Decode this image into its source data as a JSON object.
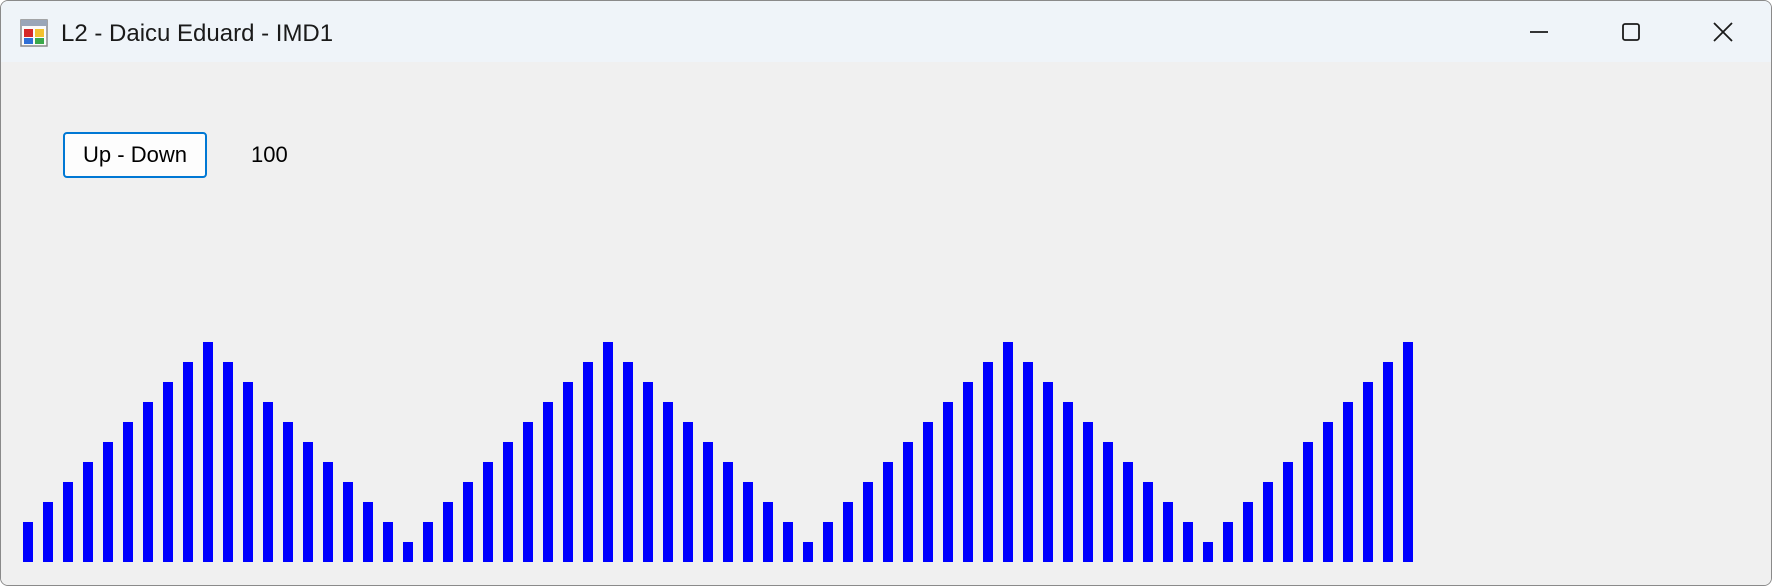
{
  "window": {
    "title": "L2 - Daicu Eduard - IMD1",
    "icon": "winforms-app-icon",
    "controls": [
      "minimize-icon",
      "maximize-icon",
      "close-icon"
    ]
  },
  "toolbar": {
    "up_down_label": "Up - Down",
    "value": "100"
  },
  "bars": {
    "color": "#0000ff",
    "max_value": 11,
    "values": [
      2,
      3,
      4,
      5,
      6,
      7,
      8,
      9,
      10,
      11,
      10,
      9,
      8,
      7,
      6,
      5,
      4,
      3,
      2,
      1,
      2,
      3,
      4,
      5,
      6,
      7,
      8,
      9,
      10,
      11,
      10,
      9,
      8,
      7,
      6,
      5,
      4,
      3,
      2,
      1,
      2,
      3,
      4,
      5,
      6,
      7,
      8,
      9,
      10,
      11,
      10,
      9,
      8,
      7,
      6,
      5,
      4,
      3,
      2,
      1,
      2,
      3,
      4,
      5,
      6,
      7,
      8,
      9,
      10,
      11
    ]
  }
}
